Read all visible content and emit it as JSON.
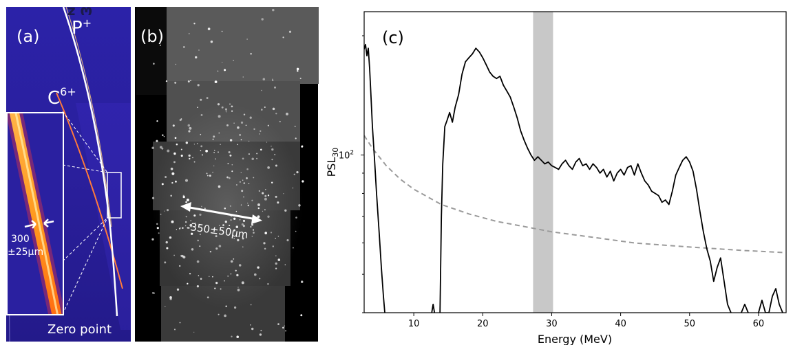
{
  "panel_a": {
    "label": "(a)",
    "proton_label": "P",
    "proton_sup": "+",
    "carbon_label": "C",
    "carbon_sup": "6+",
    "width_value": "300",
    "width_error": "±25µm",
    "zero_point_label": "Zero point",
    "mirrored_text": "ω z"
  },
  "panel_b": {
    "label": "(b)",
    "spot_size_label": "350±50µm"
  },
  "panel_c": {
    "label": "(c)",
    "chart_data": {
      "type": "line",
      "xlabel": "Energy (MeV)",
      "ylabel": "PSL",
      "ylabel_sub": "30",
      "x_ticks": [
        10,
        20,
        30,
        40,
        50,
        60
      ],
      "xlim": [
        2.8,
        64
      ],
      "y_scale": "log",
      "ylim": [
        40,
        230
      ],
      "y_tick_label": "10",
      "y_tick_sup": "2",
      "shaded_band_x": [
        27.3,
        30.2
      ],
      "series": [
        {
          "style": "solid-black",
          "segments": [
            [
              [
                2.8,
                185
              ],
              [
                3.0,
                190
              ],
              [
                3.2,
                178
              ],
              [
                3.4,
                186
              ],
              [
                3.6,
                165
              ],
              [
                3.8,
                140
              ],
              [
                4.0,
                118
              ],
              [
                4.3,
                98
              ],
              [
                4.6,
                80
              ],
              [
                5.0,
                63
              ],
              [
                5.3,
                52
              ],
              [
                5.6,
                44
              ],
              [
                5.8,
                40
              ]
            ],
            [
              [
                12.6,
                40
              ],
              [
                12.8,
                42
              ],
              [
                13.0,
                40
              ]
            ],
            [
              [
                13.8,
                40
              ],
              [
                14.0,
                70
              ],
              [
                14.2,
                95
              ],
              [
                14.5,
                118
              ],
              [
                14.8,
                122
              ],
              [
                15.2,
                128
              ],
              [
                15.6,
                121
              ],
              [
                16.0,
                132
              ],
              [
                16.5,
                142
              ],
              [
                17.0,
                160
              ],
              [
                17.5,
                172
              ],
              [
                18.0,
                176
              ],
              [
                18.5,
                180
              ],
              [
                19.0,
                186
              ],
              [
                19.5,
                182
              ],
              [
                20.0,
                176
              ],
              [
                20.5,
                169
              ],
              [
                21.0,
                162
              ],
              [
                21.5,
                158
              ],
              [
                22.0,
                156
              ],
              [
                22.5,
                158
              ],
              [
                23.0,
                150
              ],
              [
                23.5,
                145
              ],
              [
                24.0,
                140
              ],
              [
                24.5,
                132
              ],
              [
                25.0,
                124
              ],
              [
                25.5,
                115
              ],
              [
                26.0,
                109
              ],
              [
                26.5,
                104
              ],
              [
                27.0,
                100
              ],
              [
                27.5,
                97
              ],
              [
                28.0,
                99
              ],
              [
                28.5,
                97
              ],
              [
                29.0,
                95
              ],
              [
                29.5,
                96
              ],
              [
                30.0,
                94
              ],
              [
                30.5,
                93
              ],
              [
                31.0,
                92
              ],
              [
                31.5,
                95
              ],
              [
                32.0,
                97
              ],
              [
                32.5,
                94
              ],
              [
                33.0,
                92
              ],
              [
                33.5,
                96
              ],
              [
                34.0,
                98
              ],
              [
                34.5,
                94
              ],
              [
                35.0,
                95
              ],
              [
                35.5,
                92
              ],
              [
                36.0,
                95
              ],
              [
                36.5,
                93
              ],
              [
                37.0,
                90
              ],
              [
                37.5,
                92
              ],
              [
                38.0,
                88
              ],
              [
                38.5,
                91
              ],
              [
                39.0,
                86
              ],
              [
                39.5,
                90
              ],
              [
                40.0,
                92
              ],
              [
                40.5,
                89
              ],
              [
                41.0,
                93
              ],
              [
                41.5,
                94
              ],
              [
                42.0,
                89
              ],
              [
                42.5,
                95
              ],
              [
                43.0,
                90
              ],
              [
                43.5,
                86
              ],
              [
                44.0,
                84
              ],
              [
                44.5,
                81
              ],
              [
                45.0,
                80
              ],
              [
                45.5,
                79
              ],
              [
                46.0,
                76
              ],
              [
                46.5,
                77
              ],
              [
                47.0,
                75
              ],
              [
                47.5,
                81
              ],
              [
                48.0,
                89
              ],
              [
                48.5,
                93
              ],
              [
                49.0,
                97
              ],
              [
                49.5,
                99
              ],
              [
                50.0,
                96
              ],
              [
                50.5,
                91
              ],
              [
                51.0,
                82
              ],
              [
                51.5,
                72
              ],
              [
                52.0,
                64
              ],
              [
                52.5,
                58
              ],
              [
                53.0,
                54
              ],
              [
                53.5,
                48
              ],
              [
                54.0,
                52
              ],
              [
                54.5,
                55
              ],
              [
                55.0,
                48
              ],
              [
                55.5,
                42
              ],
              [
                56.0,
                40
              ]
            ],
            [
              [
                57.5,
                40
              ],
              [
                58.0,
                42
              ],
              [
                58.5,
                40
              ]
            ],
            [
              [
                60.0,
                40
              ],
              [
                60.5,
                43
              ],
              [
                61.0,
                40
              ],
              [
                61.5,
                40
              ],
              [
                62.0,
                44
              ],
              [
                62.5,
                46
              ],
              [
                63.0,
                42
              ],
              [
                63.5,
                40
              ]
            ]
          ]
        },
        {
          "style": "dashed-gray",
          "points": [
            [
              2.8,
              112
            ],
            [
              4,
              104
            ],
            [
              6,
              94
            ],
            [
              8,
              87
            ],
            [
              10,
              82
            ],
            [
              14,
              75
            ],
            [
              18,
              71
            ],
            [
              22,
              68
            ],
            [
              26,
              66
            ],
            [
              30,
              64
            ],
            [
              36,
              62
            ],
            [
              42,
              60
            ],
            [
              50,
              58.6
            ],
            [
              58,
              57.4
            ],
            [
              64,
              56.7
            ]
          ]
        }
      ]
    }
  }
}
